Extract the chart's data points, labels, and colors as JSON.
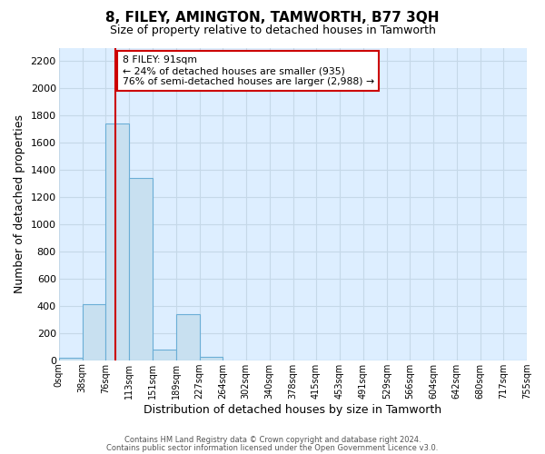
{
  "title": "8, FILEY, AMINGTON, TAMWORTH, B77 3QH",
  "subtitle": "Size of property relative to detached houses in Tamworth",
  "xlabel": "Distribution of detached houses by size in Tamworth",
  "ylabel": "Number of detached properties",
  "bar_edges": [
    0,
    38,
    76,
    113,
    151,
    189,
    227,
    264,
    302,
    340,
    378,
    415,
    453,
    491,
    529,
    566,
    604,
    642,
    680,
    717,
    755
  ],
  "bar_heights": [
    15,
    410,
    1740,
    1340,
    80,
    340,
    25,
    0,
    0,
    0,
    0,
    0,
    0,
    0,
    0,
    0,
    0,
    0,
    0,
    0
  ],
  "bar_color": "#c8e0f0",
  "bar_edge_color": "#6baed6",
  "property_value": 91,
  "red_line_color": "#cc0000",
  "annotation_line1": "8 FILEY: 91sqm",
  "annotation_line2": "← 24% of detached houses are smaller (935)",
  "annotation_line3": "76% of semi-detached houses are larger (2,988) →",
  "annotation_box_color": "#ffffff",
  "annotation_box_edge": "#cc0000",
  "ylim": [
    0,
    2300
  ],
  "yticks": [
    0,
    200,
    400,
    600,
    800,
    1000,
    1200,
    1400,
    1600,
    1800,
    2000,
    2200
  ],
  "tick_labels": [
    "0sqm",
    "38sqm",
    "76sqm",
    "113sqm",
    "151sqm",
    "189sqm",
    "227sqm",
    "264sqm",
    "302sqm",
    "340sqm",
    "378sqm",
    "415sqm",
    "453sqm",
    "491sqm",
    "529sqm",
    "566sqm",
    "604sqm",
    "642sqm",
    "680sqm",
    "717sqm",
    "755sqm"
  ],
  "footer_line1": "Contains HM Land Registry data © Crown copyright and database right 2024.",
  "footer_line2": "Contains public sector information licensed under the Open Government Licence v3.0.",
  "grid_color": "#c5d8e8",
  "background_color": "#ddeeff"
}
